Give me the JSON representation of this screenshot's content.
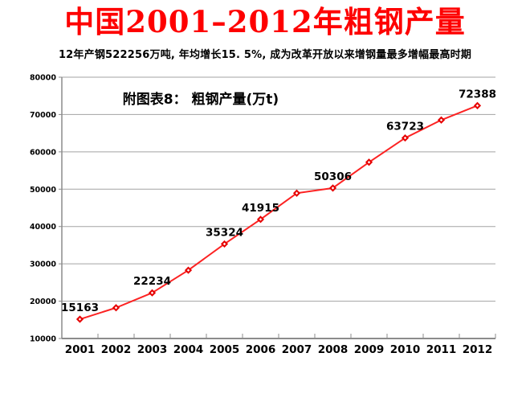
{
  "title": {
    "text": "中国2001–2012年粗钢产量",
    "color": "#fe0000"
  },
  "subtitle": {
    "text": "12年产钢522256万吨, 年均增长15. 5%, 成为改革开放以来增钢量最多增幅最高时期"
  },
  "chart_data": {
    "type": "line",
    "title": "中国2001–2012年粗钢产量",
    "annotation": "附图表8： 粗钢产量(万t)",
    "categories": [
      "2001",
      "2002",
      "2003",
      "2004",
      "2005",
      "2006",
      "2007",
      "2008",
      "2009",
      "2010",
      "2011",
      "2012"
    ],
    "series": [
      {
        "name": "粗钢产量(万t)",
        "values": [
          15163,
          18237,
          22234,
          28291,
          35324,
          41915,
          48929,
          50306,
          57218,
          63723,
          68528,
          72388
        ]
      }
    ],
    "labeled_years": [
      "2001",
      "2003",
      "2005",
      "2006",
      "2008",
      "2010",
      "2012"
    ],
    "ylim": [
      10000,
      80000
    ],
    "yticks": [
      10000,
      20000,
      30000,
      40000,
      50000,
      60000,
      70000,
      80000
    ],
    "grid": true,
    "legend_position": "none",
    "xlabel": "",
    "ylabel": "",
    "colors": {
      "line": "#fc2222",
      "marker": "#e60000",
      "marker_center": "#ffffff",
      "grid": "#a3a3a3",
      "axis": "#8c8c8c",
      "label_text": "#000000"
    }
  }
}
